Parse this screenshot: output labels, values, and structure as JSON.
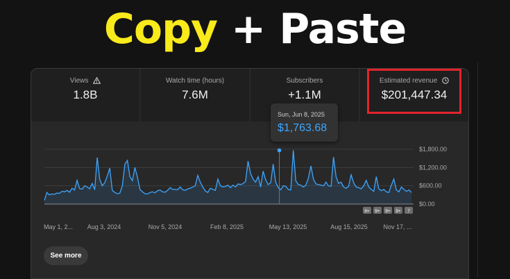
{
  "headline": {
    "part1": "Copy",
    "part2": "+ Paste"
  },
  "metrics": [
    {
      "label": "Views",
      "value": "1.8B",
      "icon": "warning-icon"
    },
    {
      "label": "Watch time (hours)",
      "value": "7.6M"
    },
    {
      "label": "Subscribers",
      "value": "+1.1M"
    },
    {
      "label": "Estimated revenue",
      "value": "$201,447.34",
      "icon": "clock-icon"
    }
  ],
  "highlight_color": "#e3242b",
  "tooltip": {
    "date": "Sun, Jun 8, 2025",
    "value": "$1,763.68"
  },
  "chart_data": {
    "type": "area",
    "color": "#3ea6ff",
    "x_ticks": [
      "May 1, 2...",
      "Aug 3, 2024",
      "Nov 5, 2024",
      "Feb 8, 2025",
      "May 13, 2025",
      "Aug 15, 2025",
      "Nov 17, ..."
    ],
    "y_ticks": [
      "$1,800.00",
      "$1,200.00",
      "$600.00",
      "$0.00"
    ],
    "ylim": [
      0,
      1800
    ],
    "grid": true,
    "highlight_point": {
      "x": 0.64,
      "y": 1763.68
    },
    "values": [
      120,
      380,
      300,
      330,
      320,
      360,
      350,
      420,
      400,
      450,
      390,
      520,
      460,
      780,
      510,
      490,
      600,
      560,
      500,
      680,
      470,
      1530,
      820,
      600,
      700,
      920,
      1180,
      450,
      380,
      340,
      360,
      600,
      1300,
      1430,
      900,
      770,
      1200,
      880,
      480,
      400,
      340,
      330,
      380,
      400,
      370,
      440,
      460,
      400,
      390,
      450,
      540,
      480,
      480,
      470,
      560,
      470,
      450,
      500,
      520,
      560,
      600,
      940,
      720,
      560,
      430,
      380,
      520,
      480,
      450,
      820,
      600,
      560,
      580,
      620,
      540,
      620,
      560,
      660,
      640,
      670,
      740,
      1410,
      1000,
      820,
      720,
      900,
      560,
      1080,
      800,
      640,
      700,
      1310,
      720,
      540,
      470,
      600,
      580,
      480,
      460,
      1763.68,
      760,
      640,
      620,
      560,
      620,
      850,
      1250,
      820,
      660,
      640,
      620,
      600,
      720,
      600,
      580,
      1540,
      900,
      680,
      720,
      560,
      520,
      580,
      960,
      700,
      560,
      540,
      500,
      600,
      780,
      560,
      480,
      420,
      900,
      500,
      440,
      480,
      400,
      380,
      620,
      820,
      460,
      400,
      560,
      480,
      420,
      460,
      380
    ]
  },
  "chart_controls": [
    "9+",
    "9+",
    "9+",
    "9+",
    "7"
  ],
  "buttons": {
    "see_more": "See more"
  }
}
